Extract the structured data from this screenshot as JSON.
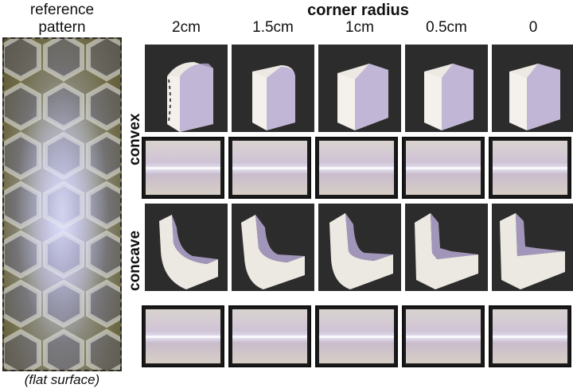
{
  "reference": {
    "title_line1": "reference",
    "title_line2": "pattern",
    "caption": "(flat surface)"
  },
  "header": {
    "title": "corner radius"
  },
  "columns": [
    "2cm",
    "1.5cm",
    "1cm",
    "0.5cm",
    "0"
  ],
  "rows": [
    "convex",
    "concave"
  ],
  "colors": {
    "photo_background": "#2c2c2c",
    "block_body": "#ece8e2",
    "pattern_purple": "#9b8bc2",
    "reference_olive": "#6f6b48"
  }
}
